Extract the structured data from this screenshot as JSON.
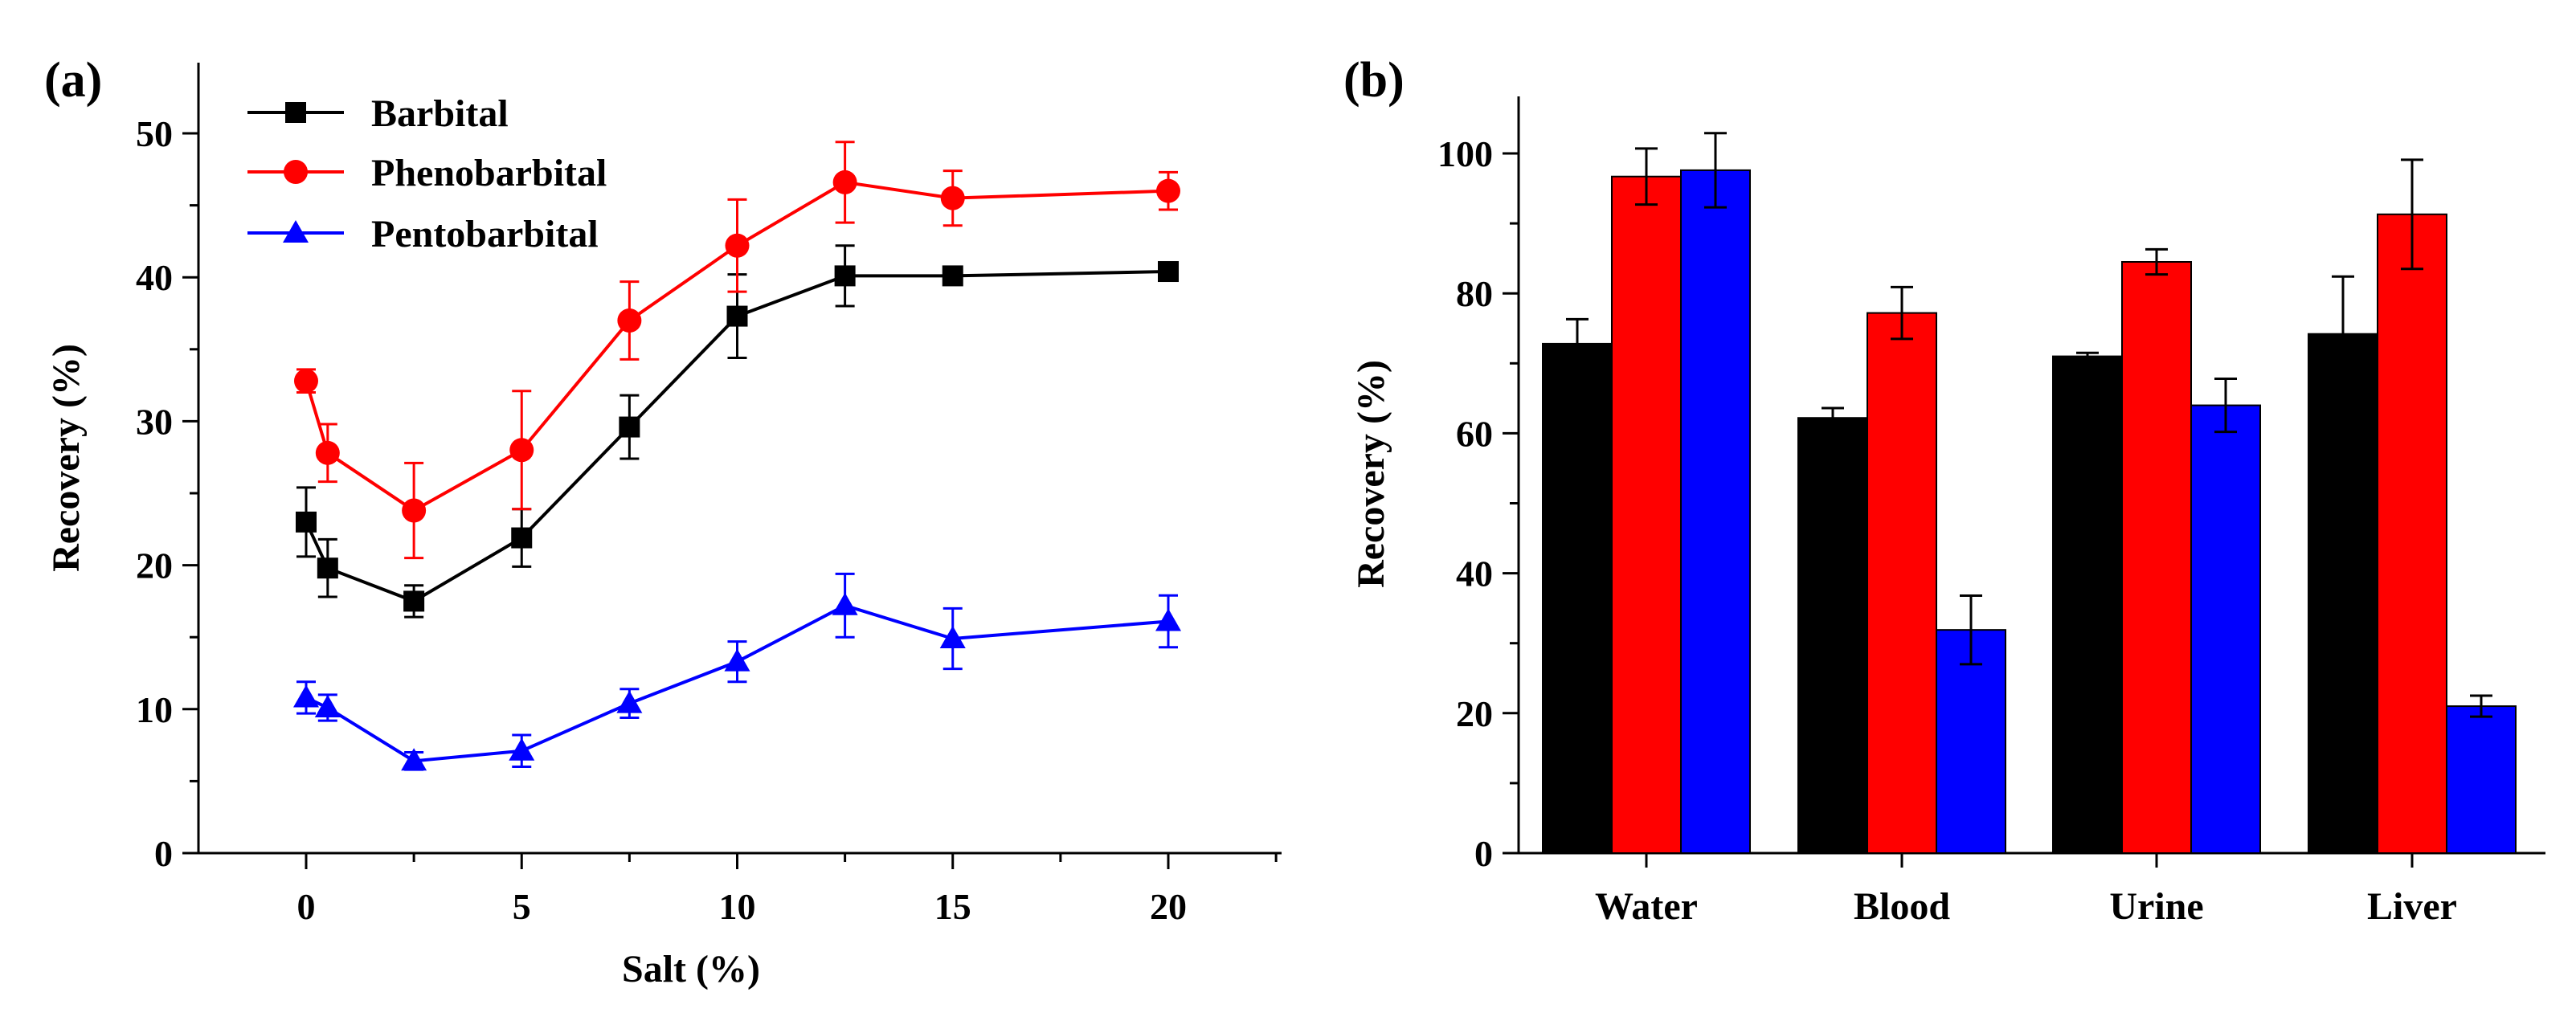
{
  "chart_data": [
    {
      "panel_label": "(a)",
      "type": "line",
      "xlabel": "Salt (%)",
      "ylabel": "Recovery (%)",
      "xlim": [
        -2.5,
        22.5
      ],
      "ylim": [
        0,
        55
      ],
      "xticks": [
        0,
        5,
        10,
        15,
        20
      ],
      "yticks": [
        0,
        10,
        20,
        30,
        40,
        50
      ],
      "tick_labels_x": [
        "0",
        "5",
        "10",
        "15",
        "20"
      ],
      "tick_labels_y": [
        "0",
        "10",
        "20",
        "30",
        "40",
        "50"
      ],
      "legend_position": "top-left",
      "x": [
        0,
        0.5,
        2.5,
        5,
        7.5,
        10,
        12.5,
        15,
        20
      ],
      "series": [
        {
          "name": "Barbital",
          "color": "#000000",
          "marker": "square",
          "values": [
            23.0,
            19.8,
            17.5,
            21.9,
            29.6,
            37.3,
            40.1,
            40.1,
            40.4
          ],
          "errors": [
            2.4,
            2.0,
            1.1,
            2.0,
            2.2,
            2.9,
            2.1,
            0.4,
            0.5
          ]
        },
        {
          "name": "Phenobarbital",
          "color": "#ff0000",
          "marker": "circle",
          "values": [
            32.8,
            27.8,
            23.8,
            28.0,
            37.0,
            42.2,
            46.6,
            45.5,
            46.0
          ],
          "errors": [
            0.8,
            2.0,
            3.3,
            4.1,
            2.7,
            3.2,
            2.8,
            1.9,
            1.3
          ]
        },
        {
          "name": "Pentobarbital",
          "color": "#0000ff",
          "marker": "triangle",
          "values": [
            10.8,
            10.1,
            6.4,
            7.1,
            10.4,
            13.3,
            17.2,
            14.9,
            16.1
          ],
          "errors": [
            1.1,
            0.9,
            0.6,
            1.1,
            1.0,
            1.4,
            2.2,
            2.1,
            1.8
          ]
        }
      ]
    },
    {
      "panel_label": "(b)",
      "type": "bar",
      "xlabel": "",
      "ylabel": "Recovery (%)",
      "ylim": [
        0,
        108
      ],
      "yticks": [
        0,
        20,
        40,
        60,
        80,
        100
      ],
      "tick_labels_y": [
        "0",
        "20",
        "40",
        "60",
        "80",
        "100"
      ],
      "categories": [
        "Water",
        "Blood",
        "Urine",
        "Liver"
      ],
      "series": [
        {
          "name": "Barbital",
          "color": "#000000",
          "values": [
            72.8,
            62.2,
            71.0,
            74.2
          ],
          "errors": [
            3.5,
            1.4,
            0.5,
            8.2
          ]
        },
        {
          "name": "Phenobarbital",
          "color": "#ff0000",
          "values": [
            96.7,
            77.2,
            84.5,
            91.3
          ],
          "errors": [
            4.0,
            3.7,
            1.8,
            7.8
          ]
        },
        {
          "name": "Pentobarbital",
          "color": "#0000ff",
          "values": [
            97.6,
            31.9,
            64.0,
            21.0
          ],
          "errors": [
            5.3,
            4.9,
            3.8,
            1.5
          ]
        }
      ]
    }
  ]
}
